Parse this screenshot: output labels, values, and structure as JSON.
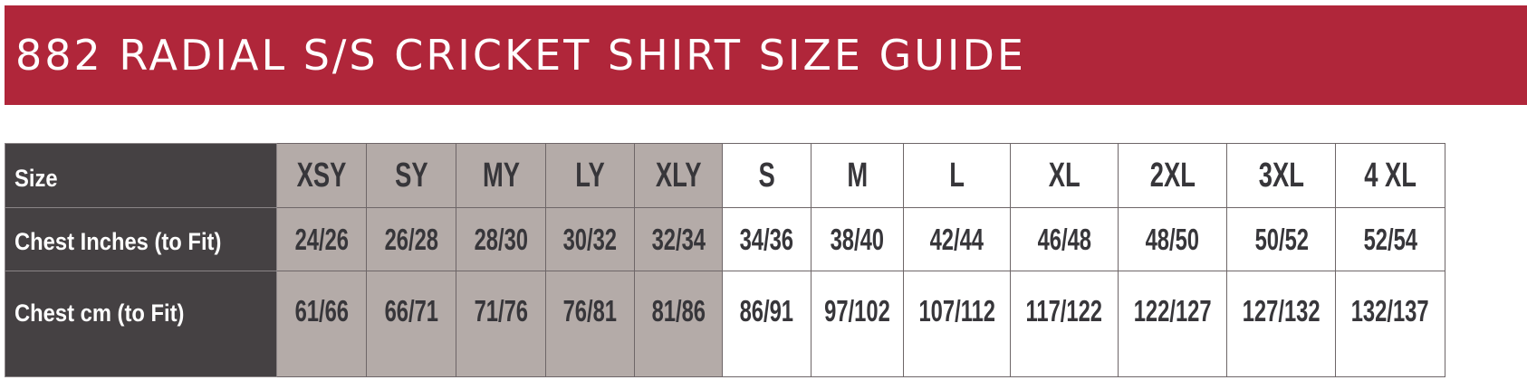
{
  "title": "882 RADIAL S/S CRICKET SHIRT SIZE GUIDE",
  "colors": {
    "banner": "#b0263a",
    "row_header": "#454143",
    "youth_columns": "#b4aba8",
    "adult_columns": "#ffffff"
  },
  "table": {
    "rows": [
      {
        "label": "Size",
        "values": [
          "XSY",
          "SY",
          "MY",
          "LY",
          "XLY",
          "S",
          "M",
          "L",
          "XL",
          "2XL",
          "3XL",
          "4 XL"
        ]
      },
      {
        "label": "Chest Inches (to Fit)",
        "values": [
          "24/26",
          "26/28",
          "28/30",
          "30/32",
          "32/34",
          "34/36",
          "38/40",
          "42/44",
          "46/48",
          "48/50",
          "50/52",
          "52/54"
        ]
      },
      {
        "label": "Chest cm (to Fit)",
        "values": [
          "61/66",
          "66/71",
          "71/76",
          "76/81",
          "81/86",
          "86/91",
          "97/102",
          "107/112",
          "117/122",
          "122/127",
          "127/132",
          "132/137"
        ]
      }
    ]
  }
}
